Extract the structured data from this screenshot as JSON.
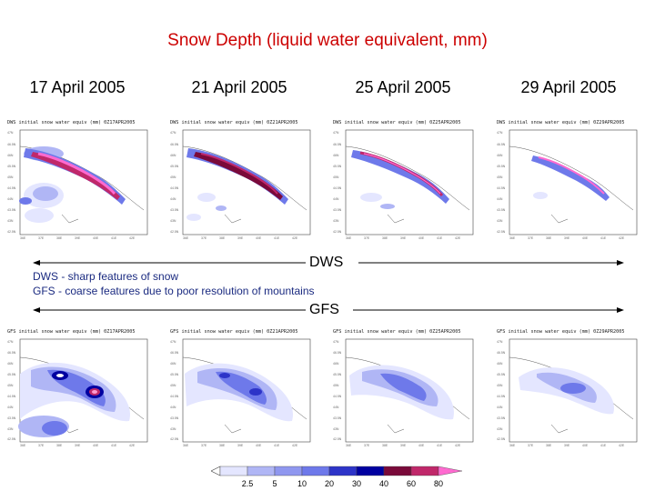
{
  "title": "Snow Depth (liquid water equivalent, mm)",
  "dates": [
    "17 April 2005",
    "21 April 2005",
    "25 April 2005",
    "29 April 2005"
  ],
  "dws_panels": [
    {
      "caption": "DWS initial snow water equiv (mm) 0Z17APR2005"
    },
    {
      "caption": "DWS initial snow water equiv (mm) 0Z21APR2005"
    },
    {
      "caption": "DWS initial snow water equiv (mm) 0Z25APR2005"
    },
    {
      "caption": "DWS initial snow water equiv (mm) 0Z29APR2005"
    }
  ],
  "gfs_panels": [
    {
      "caption": "GFS initial snow water equiv (mm) 0Z17APR2005"
    },
    {
      "caption": "GFS initial snow water equiv (mm) 0Z21APR2005"
    },
    {
      "caption": "GFS initial snow water equiv (mm) 0Z25APR2005"
    },
    {
      "caption": "GFS initial snow water equiv (mm) 0Z29APR2005"
    }
  ],
  "dws_label": "DWS",
  "gfs_label": "GFS",
  "notes": {
    "dws": "DWS - sharp features of snow",
    "gfs": "GFS - coarse features due to poor resolution of mountains"
  },
  "colorbar": {
    "labels": [
      "2.5",
      "5",
      "10",
      "20",
      "30",
      "40",
      "60",
      "80"
    ],
    "colors": [
      "#ffffff",
      "#e4e6ff",
      "#b0b6f5",
      "#6e79ea",
      "#2d34c8",
      "#0000a0",
      "#7a0a3a",
      "#c0286a",
      "#ff6ad0"
    ]
  },
  "colors": {
    "title": "#cc0000",
    "note": "#1a2a80"
  }
}
